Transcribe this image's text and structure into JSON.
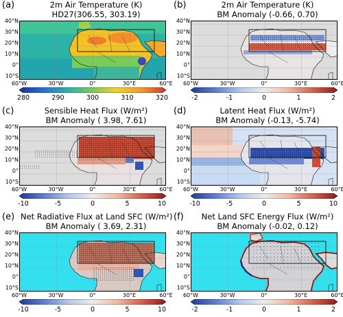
{
  "axes": {
    "lat_labels": [
      "40°N",
      "30°N",
      "20°N",
      "10°N",
      "0°",
      "10°S"
    ],
    "lon_labels": [
      "60°W",
      "30°W",
      "0°",
      "30°E",
      "60°E"
    ]
  },
  "panels": [
    {
      "id": "a",
      "label": "(a)",
      "title_line1": "2m Air Temperature (K)",
      "title_line2": "HD27(306.55, 303.19)",
      "style": "temp",
      "colorbar": {
        "type": "viridis-like",
        "ticks": [
          "280",
          "290",
          "300",
          "310",
          "320"
        ]
      }
    },
    {
      "id": "b",
      "label": "(b)",
      "title_line1": "2m Air Temperature (K)",
      "title_line2": "BM Anomaly (-0.66,  0.70)",
      "style": "anom-t",
      "colorbar": {
        "type": "diverging",
        "ticks": [
          "-2",
          "-1",
          "0",
          "1",
          "2"
        ]
      }
    },
    {
      "id": "c",
      "label": "(c)",
      "title_line1": "Sensible Heat Flux (W/m²)",
      "title_line2": "BM Anomaly ( 3.98,  7.61)",
      "style": "sh",
      "colorbar": {
        "type": "diverging",
        "ticks": [
          "-10",
          "-5",
          "0",
          "5",
          "10"
        ]
      }
    },
    {
      "id": "d",
      "label": "(d)",
      "title_line1": "Latent Heat Flux (W/m²)",
      "title_line2": "BM Anomaly (-0.13, -5.74)",
      "style": "lh",
      "colorbar": {
        "type": "diverging",
        "ticks": [
          "-10",
          "-5",
          "0",
          "5",
          "10"
        ]
      }
    },
    {
      "id": "e",
      "label": "(e)",
      "title_line1": "Net Radiative Flux at Land SFC (W/m²)",
      "title_line2": "BM Anomaly ( 3.69,  2.31)",
      "style": "rad",
      "colorbar": {
        "type": "diverging",
        "ticks": [
          "-10",
          "-5",
          "0",
          "5",
          "10"
        ]
      }
    },
    {
      "id": "f",
      "label": "(f)",
      "title_line1": "Net Land SFC Energy Flux (W/m²)",
      "title_line2": "BM Anomaly (-0.02,  0.12)",
      "style": "energy",
      "colorbar": {
        "type": "diverging",
        "ticks": [
          "-2",
          "-1",
          "0",
          "1",
          "2"
        ]
      }
    }
  ]
}
